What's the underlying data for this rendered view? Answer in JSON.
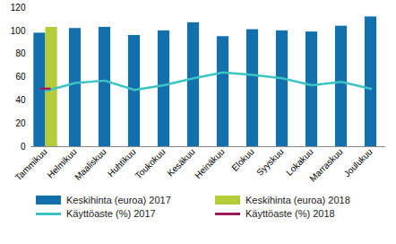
{
  "chart_data": {
    "type": "bar",
    "categories": [
      "Tammikuu",
      "Helmikuu",
      "Maaliskuu",
      "Huhtikuu",
      "Toukokuu",
      "Kesäkuu",
      "Heinäkuu",
      "Elokuu",
      "Syyskuu",
      "Lokakuu",
      "Marraskuu",
      "Joulukuu"
    ],
    "series": [
      {
        "name": "Keskihinta (euroa) 2017",
        "type": "bar",
        "color": "#1470ad",
        "values": [
          98,
          102,
          103,
          96,
          100,
          107,
          95,
          101,
          100,
          99,
          104,
          112
        ]
      },
      {
        "name": "Keskihinta (euroa) 2018",
        "type": "bar",
        "color": "#b4cc3a",
        "values": [
          103,
          null,
          null,
          null,
          null,
          null,
          null,
          null,
          null,
          null,
          null,
          null
        ]
      },
      {
        "name": "Käyttöaste (%) 2017",
        "type": "line",
        "color": "#3cc3c3",
        "values": [
          48,
          55,
          57,
          49,
          53,
          59,
          64,
          62,
          59,
          53,
          56,
          50
        ]
      },
      {
        "name": "Käyttöaste (%) 2018",
        "type": "line",
        "marker": "dash",
        "color": "#9c1a5c",
        "values": [
          50,
          null,
          null,
          null,
          null,
          null,
          null,
          null,
          null,
          null,
          null,
          null
        ]
      }
    ],
    "ylim": [
      0,
      120
    ],
    "yticks": [
      0,
      20,
      40,
      60,
      80,
      100,
      120
    ],
    "grid": false,
    "legend": "bottom"
  }
}
